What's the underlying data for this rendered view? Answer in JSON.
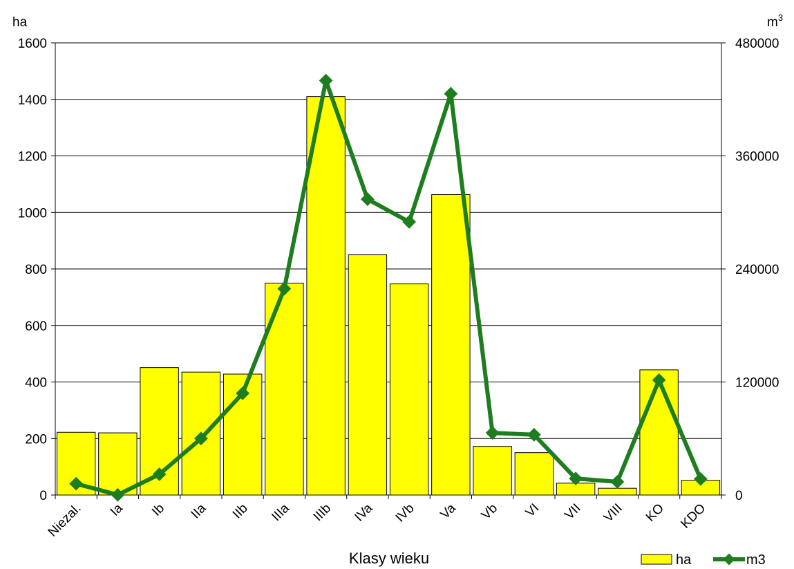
{
  "chart_data": {
    "type": "bar",
    "categories": [
      "Niezal.",
      "Ia",
      "Ib",
      "IIa",
      "IIb",
      "IIIa",
      "IIIb",
      "IVa",
      "IVb",
      "Va",
      "Vb",
      "VI",
      "VII",
      "VIII",
      "KO",
      "KDO"
    ],
    "series": [
      {
        "name": "ha",
        "type": "bar",
        "axis": "left",
        "color": "#ffff00",
        "values": [
          222,
          220,
          451,
          435,
          428,
          750,
          1410,
          850,
          747,
          1063,
          172,
          150,
          42,
          24,
          443,
          52
        ]
      },
      {
        "name": "m3",
        "type": "line",
        "axis": "right",
        "color": "#1e7d1e",
        "values": [
          12000,
          200,
          22000,
          60000,
          108000,
          219000,
          440000,
          314000,
          290000,
          426000,
          66000,
          64000,
          17500,
          14000,
          122000,
          17000
        ]
      }
    ],
    "xlabel": "Klasy wieku",
    "ylabel_left": "ha",
    "ylabel_right_base": "m",
    "ylabel_right_sup": "3",
    "ylim_left": [
      0,
      1600
    ],
    "ylim_right": [
      0,
      480000
    ],
    "yticks_left": [
      "0",
      "200",
      "400",
      "600",
      "800",
      "1000",
      "1200",
      "1400",
      "1600"
    ],
    "yticks_right": [
      "0",
      "120000",
      "240000",
      "360000",
      "480000"
    ],
    "grid": true,
    "legend_position": "bottom-right"
  }
}
